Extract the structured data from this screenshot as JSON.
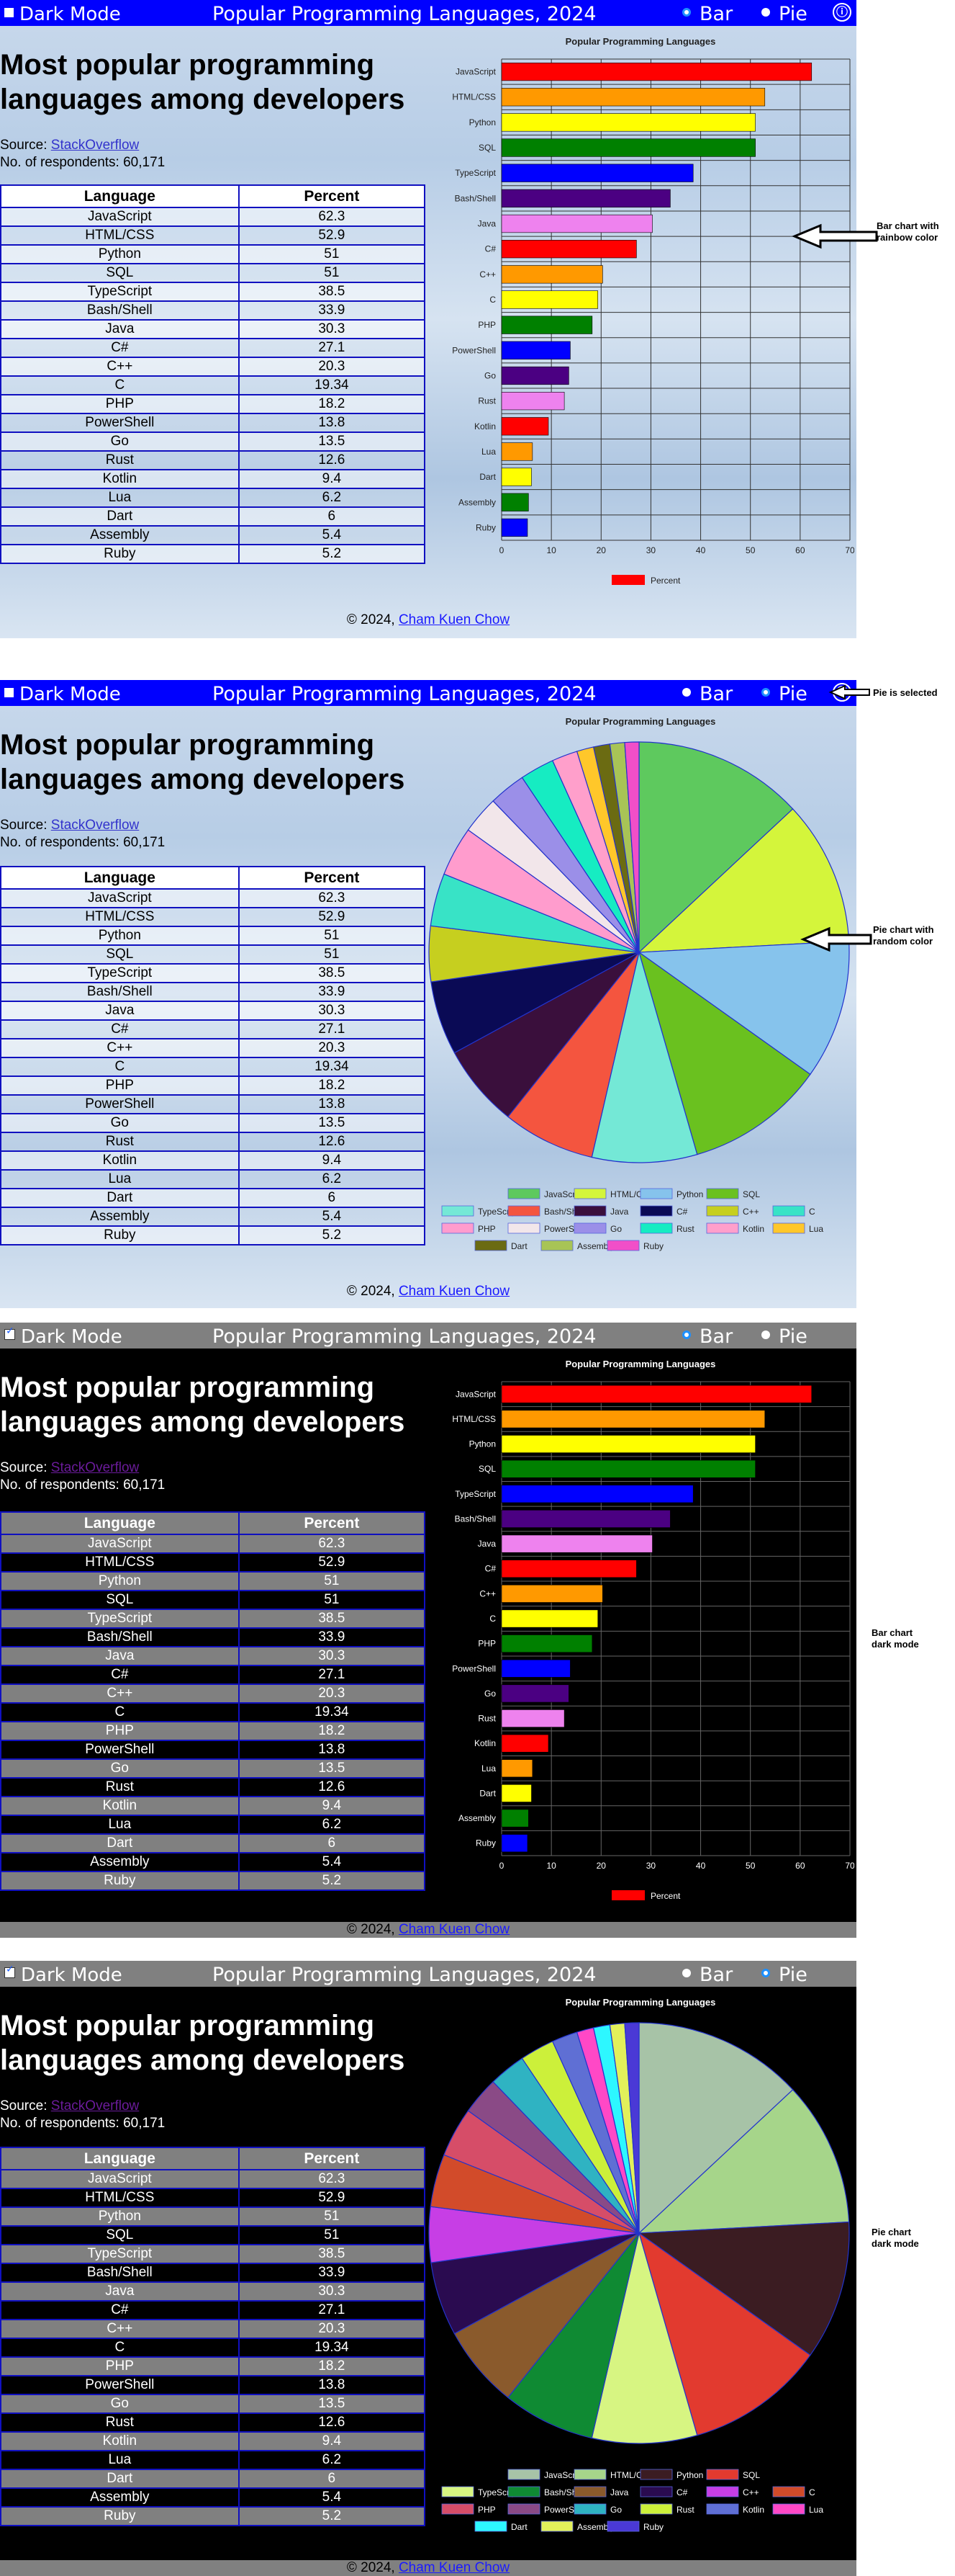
{
  "app": {
    "dark_mode_label": "Dark Mode",
    "title": "Popular Programming Languages, 2024",
    "bar_label": "Bar",
    "pie_label": "Pie",
    "info_icon": "ⓘ"
  },
  "content": {
    "headline": "Most popular programming languages among developers",
    "source_prefix": "Source:",
    "source_link": "StackOverflow",
    "respondents": "No. of respondents: 60,171",
    "table_headers": [
      "Language",
      "Percent"
    ],
    "rows": [
      [
        "JavaScript",
        "62.3"
      ],
      [
        "HTML/CSS",
        "52.9"
      ],
      [
        "Python",
        "51"
      ],
      [
        "SQL",
        "51"
      ],
      [
        "TypeScript",
        "38.5"
      ],
      [
        "Bash/Shell",
        "33.9"
      ],
      [
        "Java",
        "30.3"
      ],
      [
        "C#",
        "27.1"
      ],
      [
        "C++",
        "20.3"
      ],
      [
        "C",
        "19.34"
      ],
      [
        "PHP",
        "18.2"
      ],
      [
        "PowerShell",
        "13.8"
      ],
      [
        "Go",
        "13.5"
      ],
      [
        "Rust",
        "12.6"
      ],
      [
        "Kotlin",
        "9.4"
      ],
      [
        "Lua",
        "6.2"
      ],
      [
        "Dart",
        "6"
      ],
      [
        "Assembly",
        "5.4"
      ],
      [
        "Ruby",
        "5.2"
      ]
    ],
    "footer_prefix": "© 2024,",
    "footer_link": "Cham Kuen Chow"
  },
  "annotations": {
    "bar_rainbow": "Bar chart  with rainbow color",
    "pie_selected": "Pie is selected",
    "pie_random": "Pie chart with random color",
    "bar_dark": "Bar chart dark mode",
    "pie_dark": "Pie chart dark mode"
  },
  "colors": {
    "accent": "#0000ff",
    "dark_bar": "#808080",
    "rainbow": [
      "#ff0000",
      "#ff9900",
      "#ffff00",
      "#008000",
      "#0000ff",
      "#4b0082",
      "#ee82ee"
    ],
    "pie_light": [
      "#5ec95e",
      "#d4f53b",
      "#86c3ec",
      "#6ac11f",
      "#74e8d6",
      "#f4553f",
      "#3a0f3c",
      "#0a0a55",
      "#c6cf1f",
      "#38e3c6",
      "#ff9ccd",
      "#f2e6ea",
      "#9b8fe8",
      "#16ecc2",
      "#ff9fcb",
      "#ffc72a",
      "#6b6b12",
      "#a8c456",
      "#f14fc8",
      "#c5e8f3"
    ],
    "pie_dark": [
      "#a7c3a7",
      "#a6d58a",
      "#3b1c22",
      "#e23a2f",
      "#d7f582",
      "#0f8a33",
      "#8a5a2c",
      "#2a0b50",
      "#c73ee5",
      "#d24b2a",
      "#d64d68",
      "#8a4a86",
      "#2fb3c2",
      "#ccf03a",
      "#5f6fd4",
      "#ff48c6",
      "#2df7ff",
      "#e2f05a",
      "#4a39d6",
      "#b010a6"
    ]
  },
  "chart_data": [
    {
      "type": "bar",
      "title": "Popular Programming Languages",
      "categories": [
        "JavaScript",
        "HTML/CSS",
        "Python",
        "SQL",
        "TypeScript",
        "Bash/Shell",
        "Java",
        "C#",
        "C++",
        "C",
        "PHP",
        "PowerShell",
        "Go",
        "Rust",
        "Kotlin",
        "Lua",
        "Dart",
        "Assembly",
        "Ruby"
      ],
      "series": [
        {
          "name": "Percent",
          "values": [
            62.3,
            52.9,
            51,
            51,
            38.5,
            33.9,
            30.3,
            27.1,
            20.3,
            19.34,
            18.2,
            13.8,
            13.5,
            12.6,
            9.4,
            6.2,
            6,
            5.4,
            5.2
          ]
        }
      ],
      "xlim": [
        0,
        70
      ],
      "xticks": [
        "0",
        "10",
        "20",
        "30",
        "40",
        "50",
        "60",
        "70"
      ],
      "grid": true,
      "legend": "bottom"
    },
    {
      "type": "pie",
      "title": "Popular Programming Languages",
      "categories": [
        "JavaScript",
        "HTML/CSS",
        "Python",
        "SQL",
        "TypeScript",
        "Bash/Shell",
        "Java",
        "C#",
        "C++",
        "C",
        "PHP",
        "PowerShell",
        "Go",
        "Rust",
        "Kotlin",
        "Lua",
        "Dart",
        "Assembly",
        "Ruby"
      ],
      "values": [
        62.3,
        52.9,
        51,
        51,
        38.5,
        33.9,
        30.3,
        27.1,
        20.3,
        19.34,
        18.2,
        13.8,
        13.5,
        12.6,
        9.4,
        6.2,
        6,
        5.4,
        5.2
      ],
      "legend": "bottom"
    }
  ]
}
